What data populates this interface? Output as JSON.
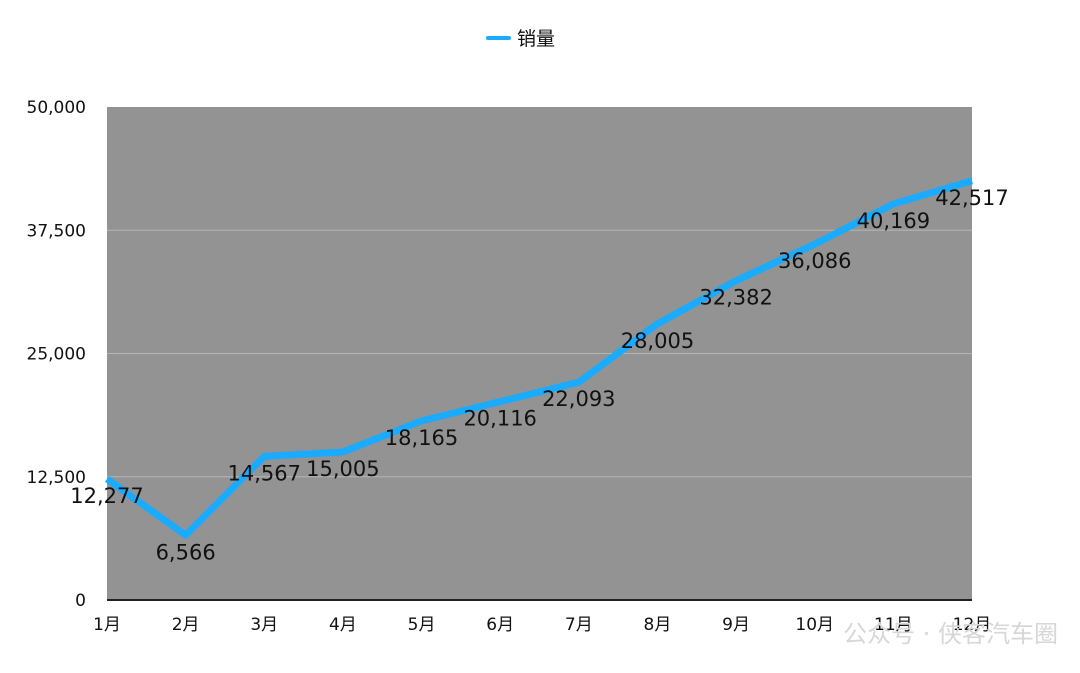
{
  "chart_data": {
    "type": "line",
    "categories": [
      "1月",
      "2月",
      "3月",
      "4月",
      "5月",
      "6月",
      "7月",
      "8月",
      "9月",
      "10月",
      "11月",
      "12月"
    ],
    "series": [
      {
        "name": "销量",
        "color": "#1aabff",
        "values": [
          12277,
          6566,
          14567,
          15005,
          18165,
          20116,
          22093,
          28005,
          32382,
          36086,
          40169,
          42517
        ],
        "labels": [
          "12,277",
          "6,566",
          "14,567",
          "15,005",
          "18,165",
          "20,116",
          "22,093",
          "28,005",
          "32,382",
          "36,086",
          "40,169",
          "42,517"
        ]
      }
    ],
    "yticks": [
      "0",
      "12,500",
      "25,000",
      "37,500",
      "50,000"
    ],
    "ylim": [
      0,
      50000
    ],
    "grid": true,
    "legend": "top-center",
    "plot_background": "#939393"
  },
  "watermark": "公众号 · 侠客汽车圈"
}
